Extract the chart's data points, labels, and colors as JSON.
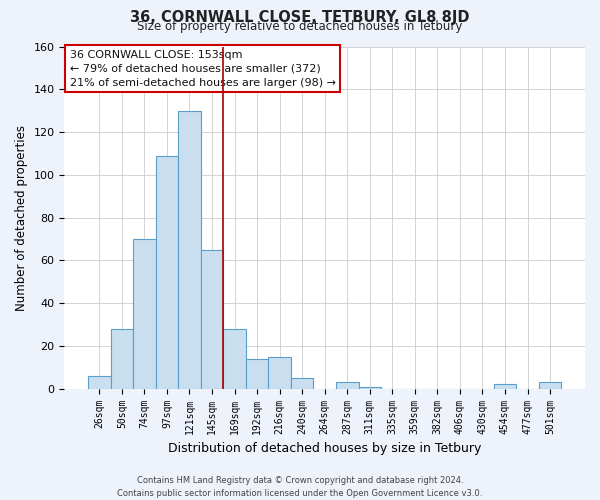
{
  "title": "36, CORNWALL CLOSE, TETBURY, GL8 8JD",
  "subtitle": "Size of property relative to detached houses in Tetbury",
  "xlabel": "Distribution of detached houses by size in Tetbury",
  "ylabel": "Number of detached properties",
  "bar_labels": [
    "26sqm",
    "50sqm",
    "74sqm",
    "97sqm",
    "121sqm",
    "145sqm",
    "169sqm",
    "192sqm",
    "216sqm",
    "240sqm",
    "264sqm",
    "287sqm",
    "311sqm",
    "335sqm",
    "359sqm",
    "382sqm",
    "406sqm",
    "430sqm",
    "454sqm",
    "477sqm",
    "501sqm"
  ],
  "bar_values": [
    6,
    28,
    70,
    109,
    130,
    65,
    28,
    14,
    15,
    5,
    0,
    3,
    1,
    0,
    0,
    0,
    0,
    0,
    2,
    0,
    3
  ],
  "bar_color": "#c9dff0",
  "bar_edge_color": "#5b9ec9",
  "highlight_line_color": "#aa0000",
  "annotation_box_text": "36 CORNWALL CLOSE: 153sqm\n← 79% of detached houses are smaller (372)\n21% of semi-detached houses are larger (98) →",
  "ylim": [
    0,
    160
  ],
  "yticks": [
    0,
    20,
    40,
    60,
    80,
    100,
    120,
    140,
    160
  ],
  "footer_line1": "Contains HM Land Registry data © Crown copyright and database right 2024.",
  "footer_line2": "Contains public sector information licensed under the Open Government Licence v3.0.",
  "bg_color": "#eef2fb",
  "plot_bg_color": "#ffffff",
  "grid_color": "#cccccc"
}
